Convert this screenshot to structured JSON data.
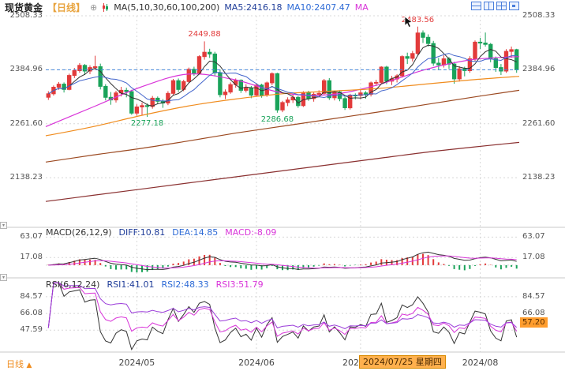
{
  "header": {
    "symbol": "现货黄金",
    "period": "【日线】",
    "expand_icon": "⊕",
    "ma_settings": "MA(5,10,30,60,100,200)",
    "ma5": "MA5:2416.18",
    "ma10": "MA10:2407.47",
    "ma30_partial": "MA"
  },
  "macd_header": {
    "title": "MACD(26,12,9)",
    "diff": "DIFF:10.81",
    "dea": "DEA:14.85",
    "macd": "MACD:-8.09"
  },
  "rsi_header": {
    "title": "RSI(6,12,24)",
    "rsi1": "RSI1:41.01",
    "rsi2": "RSI2:48.33",
    "rsi3": "RSI3:51.79"
  },
  "bottom": {
    "period": "日线",
    "arrow": "▲",
    "tooltip": "2024/07/25 星期四"
  },
  "badges": {
    "rsi": "57.20"
  },
  "chart_data": {
    "type": "candlestick",
    "title": "现货黄金【日线】",
    "colors": {
      "up": "#e23b3b",
      "down": "#1aa35a",
      "ma5": "#333333",
      "ma10": "#4466cc",
      "ma30": "#d935d9",
      "ma60": "#f08c1e",
      "ma100": "#9c4a22",
      "ma200": "#8a3030",
      "diff": "#333333",
      "dea": "#d935d9",
      "rsi1": "#333333",
      "rsi2": "#d935d9",
      "rsi3": "#9a3bd9",
      "last_price_line": "#4488dd"
    },
    "x_labels": [
      {
        "index": 17,
        "label": "2024/05"
      },
      {
        "index": 40,
        "label": "2024/06"
      },
      {
        "index": 60,
        "label": "2024/07"
      },
      {
        "index": 83,
        "label": "2024/08"
      }
    ],
    "main": {
      "ylim": [
        2032.0,
        2508.33
      ],
      "yticks": [
        2508.33,
        2384.96,
        2261.6,
        2138.23
      ],
      "last_price": 2384.96,
      "annotations": [
        {
          "index": 30,
          "price": 2449.88,
          "text": "2449.88",
          "side": "above",
          "color": "#e23b3b"
        },
        {
          "index": 19,
          "price": 2277.18,
          "text": "2277.18",
          "side": "below",
          "color": "#1aa35a"
        },
        {
          "index": 44,
          "price": 2286.68,
          "text": "2286.68",
          "side": "below",
          "color": "#1aa35a"
        },
        {
          "index": 71,
          "price": 2483.56,
          "text": "2483.56",
          "side": "above",
          "color": "#e23b3b"
        }
      ],
      "ma_periods_computed": {
        "ma5": 5,
        "ma10": 10
      },
      "ma_curves": {
        "ma30": [
          2255,
          2300,
          2345,
          2375,
          2362,
          2332,
          2328,
          2350,
          2385,
          2408,
          2415
        ],
        "ma60": [
          2234,
          2255,
          2280,
          2302,
          2318,
          2330,
          2336,
          2342,
          2352,
          2362,
          2370
        ],
        "ma100": [
          2174,
          2190,
          2205,
          2222,
          2240,
          2256,
          2272,
          2288,
          2305,
          2322,
          2338
        ],
        "ma200": [
          2084,
          2098,
          2112,
          2126,
          2140,
          2154,
          2168,
          2182,
          2196,
          2208,
          2219
        ]
      },
      "candles": [
        [
          2322,
          2336,
          2316,
          2330
        ],
        [
          2330,
          2349,
          2326,
          2345
        ],
        [
          2345,
          2357,
          2339,
          2352
        ],
        [
          2352,
          2356,
          2333,
          2340
        ],
        [
          2340,
          2376,
          2338,
          2372
        ],
        [
          2372,
          2389,
          2366,
          2383
        ],
        [
          2383,
          2400,
          2378,
          2395
        ],
        [
          2395,
          2398,
          2373,
          2382
        ],
        [
          2382,
          2395,
          2375,
          2390
        ],
        [
          2390,
          2417,
          2385,
          2392
        ],
        [
          2392,
          2399,
          2340,
          2347
        ],
        [
          2347,
          2352,
          2315,
          2322
        ],
        [
          2322,
          2334,
          2305,
          2316
        ],
        [
          2316,
          2337,
          2310,
          2332
        ],
        [
          2332,
          2346,
          2324,
          2338
        ],
        [
          2338,
          2344,
          2322,
          2335
        ],
        [
          2335,
          2339,
          2282,
          2286
        ],
        [
          2286,
          2306,
          2280,
          2300
        ],
        [
          2300,
          2310,
          2281,
          2303
        ],
        [
          2303,
          2308,
          2277.18,
          2301
        ],
        [
          2301,
          2325,
          2296,
          2320
        ],
        [
          2320,
          2324,
          2306,
          2313
        ],
        [
          2313,
          2318,
          2298,
          2309
        ],
        [
          2309,
          2336,
          2304,
          2331
        ],
        [
          2331,
          2364,
          2327,
          2360
        ],
        [
          2360,
          2365,
          2334,
          2340
        ],
        [
          2340,
          2362,
          2336,
          2358
        ],
        [
          2358,
          2390,
          2354,
          2386
        ],
        [
          2386,
          2392,
          2371,
          2377
        ],
        [
          2377,
          2418,
          2374,
          2415
        ],
        [
          2415,
          2449.88,
          2408,
          2425
        ],
        [
          2425,
          2433,
          2412,
          2421
        ],
        [
          2421,
          2426,
          2370,
          2378
        ],
        [
          2378,
          2385,
          2322,
          2328
        ],
        [
          2328,
          2340,
          2318,
          2334
        ],
        [
          2334,
          2356,
          2330,
          2351
        ],
        [
          2351,
          2365,
          2344,
          2361
        ],
        [
          2361,
          2363,
          2332,
          2338
        ],
        [
          2338,
          2352,
          2333,
          2343
        ],
        [
          2343,
          2348,
          2320,
          2327
        ],
        [
          2327,
          2354,
          2324,
          2350
        ],
        [
          2350,
          2353,
          2321,
          2327
        ],
        [
          2327,
          2358,
          2323,
          2355
        ],
        [
          2355,
          2379,
          2350,
          2376
        ],
        [
          2376,
          2378,
          2286.68,
          2293
        ],
        [
          2293,
          2314,
          2288,
          2310
        ],
        [
          2310,
          2322,
          2302,
          2316
        ],
        [
          2316,
          2328,
          2309,
          2322
        ],
        [
          2322,
          2325,
          2298,
          2303
        ],
        [
          2303,
          2336,
          2300,
          2333
        ],
        [
          2333,
          2337,
          2314,
          2319
        ],
        [
          2319,
          2333,
          2312,
          2329
        ],
        [
          2329,
          2338,
          2322,
          2331
        ],
        [
          2331,
          2364,
          2328,
          2360
        ],
        [
          2360,
          2366,
          2316,
          2321
        ],
        [
          2321,
          2337,
          2315,
          2334
        ],
        [
          2334,
          2338,
          2313,
          2319
        ],
        [
          2319,
          2324,
          2293,
          2298
        ],
        [
          2298,
          2330,
          2294,
          2327
        ],
        [
          2327,
          2331,
          2317,
          2326
        ],
        [
          2326,
          2339,
          2318,
          2332
        ],
        [
          2332,
          2336,
          2319,
          2329
        ],
        [
          2329,
          2358,
          2324,
          2355
        ],
        [
          2355,
          2362,
          2348,
          2356
        ],
        [
          2356,
          2393,
          2352,
          2391
        ],
        [
          2391,
          2394,
          2352,
          2359
        ],
        [
          2359,
          2371,
          2350,
          2364
        ],
        [
          2364,
          2375,
          2356,
          2371
        ],
        [
          2371,
          2418,
          2367,
          2415
        ],
        [
          2415,
          2424,
          2398,
          2411
        ],
        [
          2411,
          2428,
          2404,
          2422
        ],
        [
          2422,
          2483.56,
          2418,
          2469
        ],
        [
          2469,
          2475,
          2446,
          2459
        ],
        [
          2459,
          2466,
          2438,
          2445
        ],
        [
          2445,
          2451,
          2394,
          2400
        ],
        [
          2400,
          2412,
          2384,
          2396
        ],
        [
          2396,
          2418,
          2390,
          2410
        ],
        [
          2410,
          2414,
          2387,
          2398
        ],
        [
          2398,
          2403,
          2353,
          2364
        ],
        [
          2364,
          2393,
          2358,
          2387
        ],
        [
          2387,
          2392,
          2370,
          2383
        ],
        [
          2383,
          2416,
          2378,
          2410
        ],
        [
          2410,
          2452,
          2405,
          2448
        ],
        [
          2448,
          2458,
          2432,
          2446
        ],
        [
          2446,
          2470,
          2438,
          2443
        ],
        [
          2443,
          2446,
          2402,
          2410
        ],
        [
          2410,
          2415,
          2380,
          2390
        ],
        [
          2390,
          2398,
          2373,
          2382
        ],
        [
          2382,
          2432,
          2378,
          2427
        ],
        [
          2427,
          2438,
          2412,
          2431
        ],
        [
          2431,
          2433,
          2378,
          2384.96
        ]
      ]
    },
    "macd": {
      "params": [
        26,
        12,
        9
      ],
      "ylim": [
        -25,
        78
      ],
      "yticks": [
        63.07,
        17.08
      ],
      "legend_values": {
        "diff": 10.81,
        "dea": 14.85,
        "macd": -8.09
      }
    },
    "rsi": {
      "params": [
        6,
        12,
        24
      ],
      "ylim": [
        25,
        102
      ],
      "yticks": [
        84.57,
        66.08,
        47.59
      ],
      "yticks_right": [
        84.57,
        66.08
      ],
      "legend_values": {
        "rsi1": 41.01,
        "rsi2": 48.33,
        "rsi3": 51.79
      },
      "badge_value": 57.2
    }
  }
}
